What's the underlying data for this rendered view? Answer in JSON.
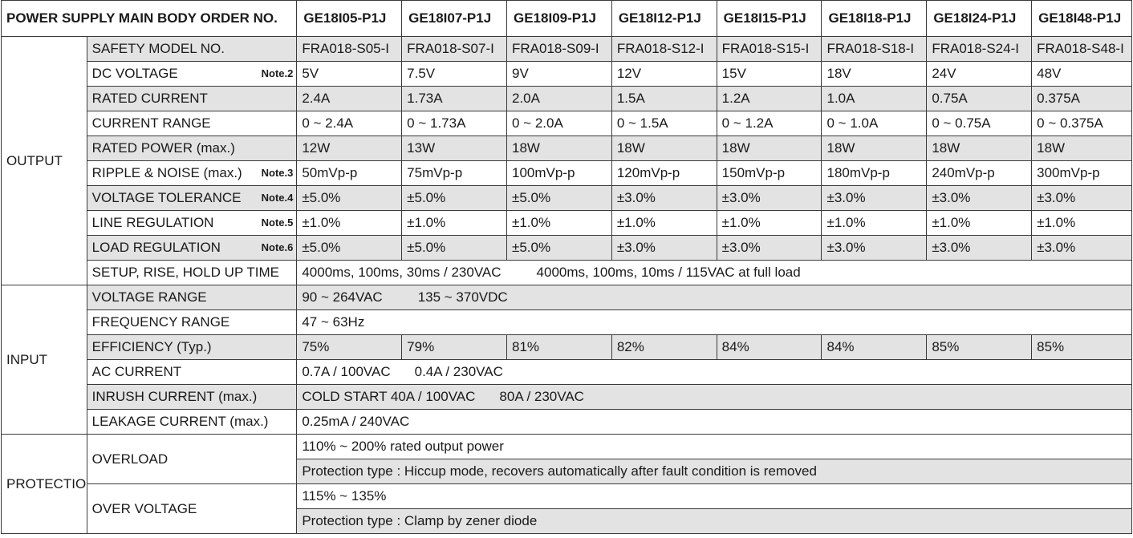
{
  "header": {
    "title": "POWER SUPPLY MAIN BODY ORDER NO.",
    "models": [
      "GE18I05-P1J",
      "GE18I07-P1J",
      "GE18I09-P1J",
      "GE18I12-P1J",
      "GE18I15-P1J",
      "GE18I18-P1J",
      "GE18I24-P1J",
      "GE18I48-P1J"
    ]
  },
  "output": {
    "category": "OUTPUT",
    "safety_model": {
      "label": "SAFETY MODEL NO.",
      "values": [
        "FRA018-S05-I",
        "FRA018-S07-I",
        "FRA018-S09-I",
        "FRA018-S12-I",
        "FRA018-S15-I",
        "FRA018-S18-I",
        "FRA018-S24-I",
        "FRA018-S48-I"
      ]
    },
    "dc_voltage": {
      "label": "DC VOLTAGE",
      "note": "Note.2",
      "values": [
        "5V",
        "7.5V",
        "9V",
        "12V",
        "15V",
        "18V",
        "24V",
        "48V"
      ]
    },
    "rated_current": {
      "label": "RATED CURRENT",
      "values": [
        "2.4A",
        "1.73A",
        "2.0A",
        "1.5A",
        "1.2A",
        "1.0A",
        "0.75A",
        "0.375A"
      ]
    },
    "current_range": {
      "label": "CURRENT RANGE",
      "values": [
        "0 ~ 2.4A",
        "0 ~ 1.73A",
        "0 ~ 2.0A",
        "0 ~ 1.5A",
        "0 ~ 1.2A",
        "0 ~ 1.0A",
        "0 ~ 0.75A",
        "0 ~ 0.375A"
      ]
    },
    "rated_power": {
      "label": "RATED POWER (max.)",
      "values": [
        "12W",
        "13W",
        "18W",
        "18W",
        "18W",
        "18W",
        "18W",
        "18W"
      ]
    },
    "ripple_noise": {
      "label": "RIPPLE & NOISE (max.)",
      "note": "Note.3",
      "values": [
        "50mVp-p",
        "75mVp-p",
        "100mVp-p",
        "120mVp-p",
        "150mVp-p",
        "180mVp-p",
        "240mVp-p",
        "300mVp-p"
      ]
    },
    "voltage_tolerance": {
      "label": "VOLTAGE TOLERANCE",
      "note": "Note.4",
      "values": [
        "±5.0%",
        "±5.0%",
        "±5.0%",
        "±3.0%",
        "±3.0%",
        "±3.0%",
        "±3.0%",
        "±3.0%"
      ]
    },
    "line_regulation": {
      "label": "LINE REGULATION",
      "note": "Note.5",
      "values": [
        "±1.0%",
        "±1.0%",
        "±1.0%",
        "±1.0%",
        "±1.0%",
        "±1.0%",
        "±1.0%",
        "±1.0%"
      ]
    },
    "load_regulation": {
      "label": "LOAD REGULATION",
      "note": "Note.6",
      "values": [
        "±5.0%",
        "±5.0%",
        "±5.0%",
        "±3.0%",
        "±3.0%",
        "±3.0%",
        "±3.0%",
        "±3.0%"
      ]
    },
    "setup_time": {
      "label": "SETUP, RISE, HOLD UP TIME",
      "value_a": "4000ms, 100ms, 30ms / 230VAC",
      "value_b": "4000ms, 100ms, 10ms / 115VAC at full load"
    }
  },
  "input": {
    "category": "INPUT",
    "voltage_range": {
      "label": "VOLTAGE RANGE",
      "value_a": "90 ~ 264VAC",
      "value_b": "135 ~ 370VDC"
    },
    "frequency_range": {
      "label": "FREQUENCY RANGE",
      "value": "47 ~ 63Hz"
    },
    "efficiency": {
      "label": "EFFICIENCY (Typ.)",
      "values": [
        "75%",
        "79%",
        "81%",
        "82%",
        "84%",
        "84%",
        "85%",
        "85%"
      ]
    },
    "ac_current": {
      "label": "AC CURRENT",
      "value_a": "0.7A / 100VAC",
      "value_b": "0.4A / 230VAC"
    },
    "inrush_current": {
      "label": "INRUSH CURRENT (max.)",
      "value_a": "COLD START 40A / 100VAC",
      "value_b": "80A / 230VAC"
    },
    "leakage_current": {
      "label": "LEAKAGE CURRENT (max.)",
      "value": "0.25mA / 240VAC"
    }
  },
  "protection": {
    "category": "PROTECTION",
    "overload": {
      "label": "OVERLOAD",
      "line1": "110% ~ 200%  rated output power",
      "line2": "Protection type : Hiccup mode, recovers automatically after fault condition is removed"
    },
    "over_voltage": {
      "label": "OVER VOLTAGE",
      "line1": "115% ~ 135%",
      "line2": "Protection type : Clamp by zener diode"
    }
  }
}
